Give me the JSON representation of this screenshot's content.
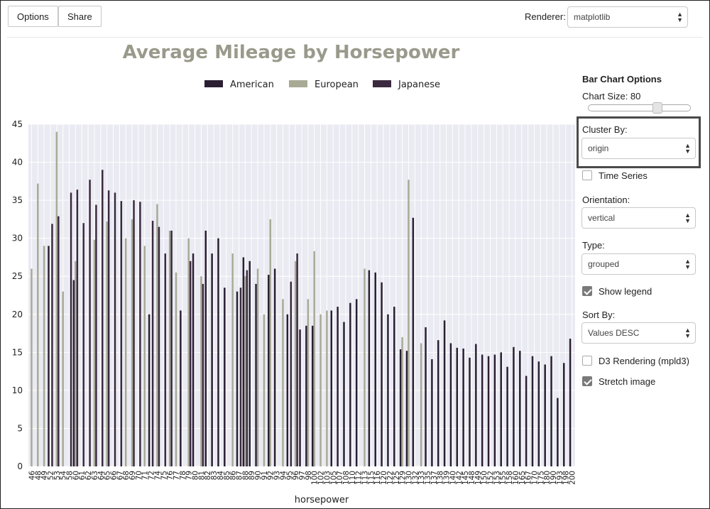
{
  "toolbar": {
    "options_label": "Options",
    "share_label": "Share",
    "renderer_label": "Renderer:",
    "renderer_value": "matplotlib"
  },
  "panel": {
    "title": "Bar Chart Options",
    "chart_size_label": "Chart Size: 80",
    "chart_size_value": 80,
    "cluster_by_label": "Cluster By:",
    "cluster_by_value": "origin",
    "time_series_label": "Time Series",
    "time_series_checked": false,
    "orientation_label": "Orientation:",
    "orientation_value": "vertical",
    "type_label": "Type:",
    "type_value": "grouped",
    "show_legend_label": "Show legend",
    "show_legend_checked": true,
    "sort_by_label": "Sort By:",
    "sort_by_value": "Values DESC",
    "d3_label": "D3 Rendering (mpld3)",
    "d3_checked": false,
    "stretch_label": "Stretch image",
    "stretch_checked": true
  },
  "colors": {
    "american": "#2a1f33",
    "european": "#a8aa96",
    "japanese": "#3b2a3f",
    "plot_bg": "#eaeaf2",
    "title": "#9a9a8c"
  },
  "chart_data": {
    "type": "bar",
    "title": "Average Mileage by Horsepower",
    "xlabel": "horsepower",
    "ylabel": "",
    "ylim": [
      0,
      45
    ],
    "yticks": [
      0,
      5,
      10,
      15,
      20,
      25,
      30,
      35,
      40,
      45
    ],
    "grid": true,
    "legend_position": "top-center",
    "categories": [
      "46",
      "48",
      "49",
      "52",
      "53",
      "54",
      "58",
      "60",
      "61",
      "62",
      "63",
      "64",
      "65",
      "66",
      "67",
      "68",
      "69",
      "70",
      "71",
      "72",
      "74",
      "75",
      "76",
      "77",
      "78",
      "79",
      "80",
      "81",
      "82",
      "83",
      "84",
      "85",
      "86",
      "87",
      "88",
      "89",
      "90",
      "91",
      "92",
      "93",
      "94",
      "95",
      "96",
      "97",
      "98",
      "100",
      "102",
      "103",
      "105",
      "107",
      "108",
      "110",
      "112",
      "113",
      "115",
      "116",
      "120",
      "122",
      "125",
      "129",
      "130",
      "132",
      "133",
      "135",
      "137",
      "138",
      "139",
      "140",
      "142",
      "145",
      "148",
      "149",
      "150",
      "152",
      "153",
      "155",
      "158",
      "160",
      "165",
      "167",
      "170",
      "175",
      "180",
      "190",
      "193",
      "198",
      "200"
    ],
    "series": [
      {
        "name": "American",
        "values": [
          null,
          null,
          null,
          29,
          null,
          null,
          null,
          24.5,
          null,
          null,
          null,
          null,
          null,
          null,
          null,
          null,
          null,
          null,
          null,
          20,
          null,
          null,
          null,
          null,
          20.5,
          null,
          28,
          null,
          31,
          28,
          30,
          23.5,
          null,
          23,
          27.5,
          27,
          24,
          null,
          25.2,
          26,
          null,
          20,
          null,
          18,
          18.5,
          18.5,
          null,
          null,
          20.5,
          21,
          19,
          21.5,
          22,
          null,
          25.8,
          25.5,
          24.2,
          20,
          21,
          15.4,
          15.2,
          32.7,
          null,
          18.3,
          14.1,
          16.6,
          19.2,
          16.2,
          15.6,
          15.5,
          14.3,
          16.1,
          14.7,
          14.5,
          14.7,
          15,
          13.1,
          15.7,
          15.2,
          11.9,
          14.5,
          13.8,
          13.4,
          14.5,
          9,
          13.6,
          16.8
        ]
      },
      {
        "name": "European",
        "values": [
          26,
          37.2,
          29,
          null,
          44,
          23,
          null,
          27,
          null,
          null,
          29.8,
          null,
          32.2,
          null,
          null,
          30,
          32.5,
          null,
          29,
          null,
          34.5,
          null,
          31,
          25.5,
          null,
          30,
          null,
          25,
          null,
          null,
          null,
          null,
          28,
          null,
          25,
          null,
          26,
          20,
          32.5,
          null,
          22,
          null,
          27,
          null,
          22,
          28.3,
          20,
          20.5,
          null,
          null,
          null,
          null,
          null,
          26,
          null,
          null,
          null,
          null,
          null,
          17,
          37.7,
          null,
          16.2,
          null,
          null,
          null,
          null,
          null,
          null,
          null,
          null,
          null,
          null,
          null,
          null,
          null,
          null,
          null,
          null,
          null,
          null,
          null,
          null,
          null,
          null,
          null,
          null
        ]
      },
      {
        "name": "Japanese",
        "values": [
          null,
          null,
          null,
          31.9,
          32.9,
          null,
          36,
          36.4,
          32,
          37.7,
          34.4,
          39,
          36.3,
          36,
          34.9,
          null,
          35,
          34.8,
          null,
          32.3,
          31.5,
          28,
          31,
          null,
          null,
          27,
          null,
          24,
          null,
          null,
          null,
          null,
          null,
          23.5,
          25.8,
          null,
          null,
          null,
          null,
          null,
          null,
          24.3,
          28,
          null,
          null,
          null,
          null,
          null,
          null,
          null,
          null,
          null,
          null,
          null,
          null,
          null,
          null,
          null,
          null,
          null,
          null,
          null,
          null,
          null,
          null,
          null,
          null,
          null,
          null,
          null,
          null,
          null,
          null,
          null,
          null,
          null,
          null,
          null,
          null,
          null,
          null,
          null,
          null,
          null,
          null,
          null,
          null
        ]
      }
    ]
  }
}
